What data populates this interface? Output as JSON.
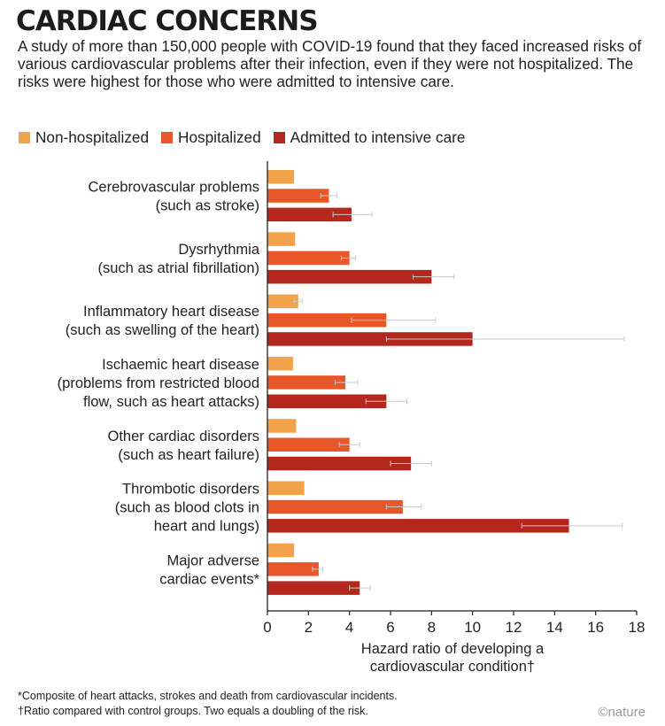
{
  "header": {
    "title": "CARDIAC CONCERNS",
    "subtitle": "A study of more than 150,000 people with COVID-19 found that they faced increased risks of various cardiovascular problems after their infection, even if they were not hospitalized. The risks were highest for those who were admitted to intensive care."
  },
  "colors": {
    "non_hospitalized": "#f2a24a",
    "hospitalized": "#e8572a",
    "icu": "#b5271d"
  },
  "chart_data": {
    "type": "bar",
    "orientation": "horizontal",
    "categories": [
      [
        "Cerebrovascular problems",
        "(such as stroke)"
      ],
      [
        "Dysrhythmia",
        "(such as atrial fibrillation)"
      ],
      [
        "Inflammatory heart disease",
        "(such as swelling of the heart)"
      ],
      [
        "Ischaemic heart disease",
        "(problems from restricted blood",
        "flow, such as heart attacks)"
      ],
      [
        "Other cardiac disorders",
        "(such as heart failure)"
      ],
      [
        "Thrombotic disorders",
        "(such as blood clots in",
        "heart and lungs)"
      ],
      [
        "Major adverse",
        "cardiac events*"
      ]
    ],
    "series": [
      {
        "name": "Non-hospitalized",
        "values": [
          1.3,
          1.35,
          1.5,
          1.25,
          1.4,
          1.8,
          1.3
        ],
        "error_low": [
          null,
          null,
          1.3,
          null,
          null,
          null,
          null
        ],
        "error_high": [
          null,
          null,
          1.7,
          null,
          null,
          null,
          null
        ]
      },
      {
        "name": "Hospitalized",
        "values": [
          3.0,
          4.0,
          5.8,
          3.8,
          4.0,
          6.6,
          2.5
        ],
        "error_low": [
          2.6,
          3.6,
          4.1,
          3.3,
          3.5,
          5.8,
          2.2
        ],
        "error_high": [
          3.4,
          4.3,
          8.2,
          4.4,
          4.5,
          7.5,
          2.7
        ]
      },
      {
        "name": "Admitted to intensive care",
        "values": [
          4.1,
          8.0,
          10.0,
          5.8,
          7.0,
          14.7,
          4.5
        ],
        "error_low": [
          3.2,
          7.1,
          5.8,
          4.8,
          6.0,
          12.4,
          4.0
        ],
        "error_high": [
          5.1,
          9.1,
          17.4,
          6.8,
          8.0,
          17.3,
          5.0
        ]
      }
    ],
    "xlim": [
      0,
      18
    ],
    "xticks": [
      0,
      2,
      4,
      6,
      8,
      10,
      12,
      14,
      16,
      18
    ],
    "xlabel": [
      "Hazard ratio of developing a",
      "cardiovascular condition†"
    ],
    "legend_position": "top-left",
    "grid": false
  },
  "footnotes": [
    "*Composite of heart attacks, strokes and death from cardiovascular incidents.",
    "†Ratio compared with control groups. Two equals a doubling of the risk."
  ],
  "credit": "©nature"
}
